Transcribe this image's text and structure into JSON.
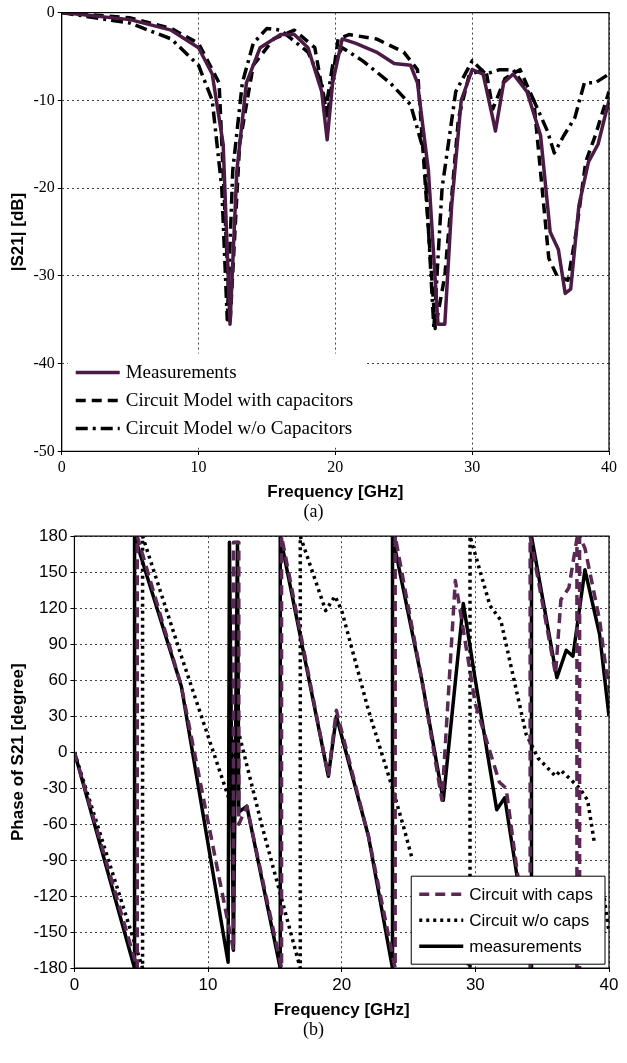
{
  "chart_data": [
    {
      "type": "line",
      "xlabel": "Frequency [GHz]",
      "ylabel": "|S21| [dB]",
      "annotations": [
        "(a)"
      ],
      "xlim": [
        0,
        40
      ],
      "xticks": [
        0,
        10,
        20,
        30,
        40
      ],
      "ylim": [
        -50,
        0
      ],
      "yticks": [
        -50,
        -40,
        -30,
        -20,
        -10,
        0
      ],
      "grid": true,
      "legend": "bottom left",
      "marker": "none",
      "series": [
        {
          "name": "Measurements",
          "color": "#4b1b45",
          "line_style": "solid",
          "x": [
            0,
            5,
            8,
            10,
            11,
            11.8,
            12.3,
            12.8,
            13.5,
            14.5,
            16,
            17,
            18,
            19,
            19.4,
            19.8,
            20.5,
            21.5,
            23,
            24.3,
            25.5,
            26,
            26.8,
            27.5,
            28,
            28.5,
            29.2,
            30,
            30.8,
            31.5,
            31.7,
            32.3,
            33,
            34,
            35,
            35.7,
            36.3,
            36.8,
            37.2,
            37.8,
            38.5,
            39.2,
            40
          ],
          "values": [
            0,
            -0.8,
            -2,
            -4,
            -7,
            -15,
            -35.5,
            -18,
            -8,
            -4,
            -2.5,
            -2.5,
            -4,
            -9,
            -14.5,
            -8,
            -3,
            -3.5,
            -4.5,
            -5.8,
            -6,
            -8,
            -18,
            -35.5,
            -35.5,
            -22,
            -10,
            -6.5,
            -7,
            -12,
            -13.5,
            -8,
            -7,
            -9,
            -14,
            -25,
            -27,
            -32,
            -31.5,
            -22,
            -17,
            -15,
            -10
          ]
        },
        {
          "name": "Circuit Model with capacitors",
          "color": "#000000",
          "line_style": "dashed",
          "x": [
            0,
            5,
            8,
            10,
            11.5,
            12.3,
            13,
            14,
            15.5,
            17,
            18.5,
            19.4,
            20.2,
            21,
            23,
            25,
            26,
            27.3,
            28,
            29,
            29.8,
            31,
            31.5,
            32.4,
            33.5,
            34.5,
            35.6,
            36.2,
            37,
            37.6,
            38.3,
            39,
            40
          ],
          "values": [
            0,
            -0.6,
            -1.8,
            -3.5,
            -8,
            -35.5,
            -15,
            -6,
            -3,
            -2,
            -4,
            -12,
            -3,
            -2.5,
            -3,
            -4.5,
            -6.5,
            -36,
            -30,
            -12,
            -7,
            -6.5,
            -11,
            -7.5,
            -6.5,
            -10,
            -28,
            -30,
            -30.5,
            -25,
            -17,
            -14,
            -9
          ]
        },
        {
          "name": "Circuit Model w/o Capacitors",
          "color": "#000000",
          "line_style": "dashdot",
          "x": [
            0,
            5,
            8,
            10,
            11,
            11.7,
            12.1,
            12.5,
            13.2,
            14,
            15,
            16,
            18,
            19,
            19.3,
            19.8,
            20.5,
            22,
            24,
            25.5,
            26.5,
            27.2,
            27.8,
            28.8,
            30,
            31,
            32,
            33,
            34.5,
            35.5,
            36,
            36.7,
            37.5,
            38.2,
            39,
            40
          ],
          "values": [
            0,
            -1.2,
            -3,
            -6,
            -10,
            -20,
            -35,
            -18,
            -8,
            -3.5,
            -1.8,
            -2,
            -4.5,
            -8,
            -11,
            -6,
            -4,
            -5.5,
            -8,
            -10.5,
            -16,
            -36,
            -20,
            -9,
            -5.5,
            -7,
            -6.5,
            -6.5,
            -10,
            -13.5,
            -16,
            -14,
            -12,
            -8,
            -8,
            -7
          ]
        }
      ]
    },
    {
      "type": "line",
      "xlabel": "Frequency [GHz]",
      "ylabel": "Phase of S21 [degree]",
      "annotations": [
        "(b)"
      ],
      "xlim": [
        0,
        40
      ],
      "xticks": [
        0,
        10,
        20,
        30,
        40
      ],
      "ylim": [
        -180,
        180
      ],
      "yticks": [
        -180,
        -150,
        -120,
        -90,
        -60,
        -30,
        0,
        30,
        60,
        90,
        120,
        150,
        180
      ],
      "grid": true,
      "legend": "bottom right",
      "marker": "none",
      "series": [
        {
          "name": "Circuit with caps",
          "color": "#5a2a55",
          "line_style": "dashed",
          "x": [
            0,
            4.7,
            4.7,
            8,
            11.9,
            11.9,
            12.3,
            12.3,
            12.9,
            15.5,
            15.5,
            19,
            19.6,
            22,
            24,
            24,
            26,
            27.5,
            28.5,
            30,
            31.8,
            32.3,
            34.1,
            34.1,
            36,
            36.4,
            37,
            37.6,
            37.6,
            37.8,
            37.8,
            38.2,
            39.3,
            40
          ],
          "values": [
            0,
            -180,
            180,
            55,
            -165,
            175,
            175,
            -60,
            -45,
            -180,
            180,
            -20,
            35,
            -70,
            -180,
            180,
            60,
            -40,
            143,
            40,
            -25,
            -30,
            -180,
            180,
            65,
            127,
            137,
            178,
            -180,
            -180,
            180,
            170,
            110,
            50
          ]
        },
        {
          "name": "Circuit w/o caps",
          "color": "#000000",
          "line_style": "dotted",
          "x": [
            0,
            5.1,
            5.1,
            8,
            11.6,
            12.1,
            14,
            16.9,
            16.9,
            18.8,
            19.5,
            20,
            22,
            23.8,
            24.7,
            25.3,
            null,
            29.4,
            29.6,
            29.6,
            31.1,
            31.9,
            33.8,
            34.7,
            36,
            36.4,
            37.8,
            38.4,
            38.9,
            null,
            39.5,
            40
          ],
          "values": [
            0,
            -180,
            180,
            80,
            -40,
            25,
            -60,
            -180,
            180,
            118,
            130,
            118,
            35,
            -30,
            -65,
            -90,
            null,
            -175,
            -180,
            180,
            122,
            110,
            15,
            -5,
            -20,
            -15,
            -30,
            -40,
            -75,
            null,
            -110,
            -150
          ]
        },
        {
          "name": "measurements",
          "color": "#000000",
          "line_style": "solid",
          "x": [
            0,
            4.5,
            4.5,
            8,
            11.5,
            11.6,
            11.9,
            12.2,
            12.3,
            12.9,
            15.4,
            15.4,
            19,
            19.6,
            22,
            23.8,
            23.8,
            26,
            27.6,
            29.1,
            30,
            31.6,
            32.2,
            34.2,
            34.2,
            36.1,
            36.8,
            37.3,
            38.2,
            39.3,
            40
          ],
          "values": [
            0,
            -180,
            180,
            55,
            -175,
            175,
            -165,
            175,
            -50,
            -45,
            -180,
            180,
            -20,
            30,
            -70,
            -180,
            180,
            60,
            -40,
            124,
            60,
            -48,
            -38,
            -180,
            180,
            62,
            85,
            80,
            152,
            98,
            30
          ]
        }
      ]
    }
  ]
}
